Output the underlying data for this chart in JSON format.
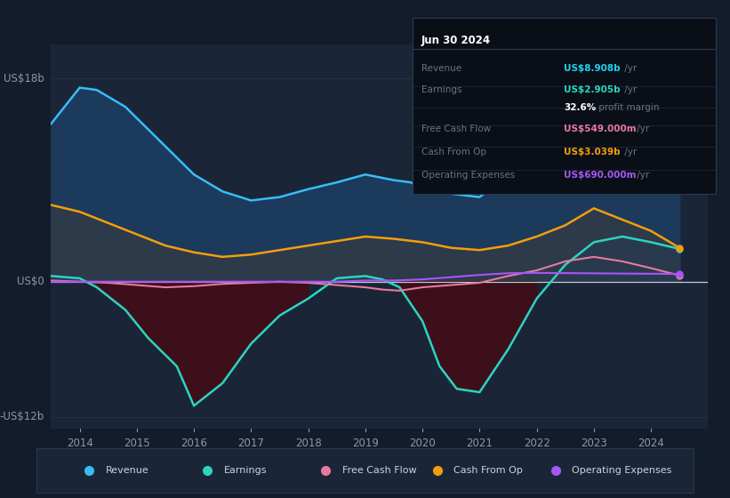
{
  "bg_color": "#131c2b",
  "plot_bg_color": "#1a2638",
  "grid_color": "#2a3a50",
  "colors": {
    "revenue_line": "#38bdf8",
    "revenue_fill": "#1b3a5c",
    "earnings_line": "#2dd4bf",
    "earnings_fill_neg": "#3d0f1a",
    "earnings_fill_pos": "#2a3a50",
    "cashfromop_line": "#f59e0b",
    "cashfromop_fill": "#2d3a4a",
    "freecashflow_line": "#e879a0",
    "opex_line": "#a855f7"
  },
  "ylim": [
    -13,
    21
  ],
  "xlim": [
    2013.5,
    2025.0
  ],
  "xticks": [
    2014,
    2015,
    2016,
    2017,
    2018,
    2019,
    2020,
    2021,
    2022,
    2023,
    2024
  ],
  "legend": [
    {
      "label": "Revenue",
      "color": "#38bdf8"
    },
    {
      "label": "Earnings",
      "color": "#2dd4bf"
    },
    {
      "label": "Free Cash Flow",
      "color": "#e879a0"
    },
    {
      "label": "Cash From Op",
      "color": "#f59e0b"
    },
    {
      "label": "Operating Expenses",
      "color": "#a855f7"
    }
  ],
  "revenue": {
    "x": [
      2013.5,
      2014.0,
      2014.3,
      2014.8,
      2015.2,
      2015.7,
      2016.0,
      2016.5,
      2017.0,
      2017.5,
      2018.0,
      2018.5,
      2019.0,
      2019.5,
      2019.8,
      2020.0,
      2020.5,
      2021.0,
      2021.5,
      2022.0,
      2022.5,
      2023.0,
      2023.3,
      2023.6,
      2024.0,
      2024.5
    ],
    "y": [
      14.0,
      17.2,
      17.0,
      15.5,
      13.5,
      11.0,
      9.5,
      8.0,
      7.2,
      7.5,
      8.2,
      8.8,
      9.5,
      9.0,
      8.8,
      8.2,
      7.8,
      7.5,
      9.5,
      11.5,
      14.0,
      16.5,
      15.0,
      14.0,
      12.5,
      8.9
    ]
  },
  "earnings": {
    "x": [
      2013.5,
      2014.0,
      2014.3,
      2014.8,
      2015.2,
      2015.7,
      2016.0,
      2016.5,
      2017.0,
      2017.5,
      2018.0,
      2018.5,
      2019.0,
      2019.3,
      2019.6,
      2020.0,
      2020.3,
      2020.6,
      2021.0,
      2021.5,
      2022.0,
      2022.5,
      2023.0,
      2023.5,
      2024.0,
      2024.5
    ],
    "y": [
      0.5,
      0.3,
      -0.5,
      -2.5,
      -5.0,
      -7.5,
      -11.0,
      -9.0,
      -5.5,
      -3.0,
      -1.5,
      0.3,
      0.5,
      0.2,
      -0.5,
      -3.5,
      -7.5,
      -9.5,
      -9.8,
      -6.0,
      -1.5,
      1.5,
      3.5,
      4.0,
      3.5,
      2.9
    ]
  },
  "cashfromop": {
    "x": [
      2013.5,
      2014.0,
      2014.5,
      2015.0,
      2015.5,
      2016.0,
      2016.5,
      2017.0,
      2017.5,
      2018.0,
      2018.5,
      2019.0,
      2019.5,
      2020.0,
      2020.5,
      2021.0,
      2021.5,
      2022.0,
      2022.5,
      2023.0,
      2023.5,
      2024.0,
      2024.5
    ],
    "y": [
      6.8,
      6.2,
      5.2,
      4.2,
      3.2,
      2.6,
      2.2,
      2.4,
      2.8,
      3.2,
      3.6,
      4.0,
      3.8,
      3.5,
      3.0,
      2.8,
      3.2,
      4.0,
      5.0,
      6.5,
      5.5,
      4.5,
      3.0
    ]
  },
  "freecashflow": {
    "x": [
      2013.5,
      2014.0,
      2014.5,
      2015.0,
      2015.5,
      2016.0,
      2016.5,
      2017.0,
      2017.5,
      2018.0,
      2018.5,
      2019.0,
      2019.3,
      2019.6,
      2020.0,
      2020.5,
      2021.0,
      2021.5,
      2022.0,
      2022.5,
      2023.0,
      2023.5,
      2024.0,
      2024.5
    ],
    "y": [
      0.1,
      0.0,
      -0.1,
      -0.3,
      -0.5,
      -0.4,
      -0.2,
      -0.1,
      0.0,
      -0.1,
      -0.3,
      -0.5,
      -0.7,
      -0.8,
      -0.5,
      -0.3,
      -0.1,
      0.5,
      1.0,
      1.8,
      2.2,
      1.8,
      1.2,
      0.55
    ]
  },
  "opex": {
    "x": [
      2013.5,
      2014.0,
      2015.0,
      2016.0,
      2017.0,
      2018.0,
      2018.5,
      2019.0,
      2019.5,
      2020.0,
      2020.5,
      2021.0,
      2021.5,
      2022.0,
      2022.5,
      2023.0,
      2023.5,
      2024.0,
      2024.5
    ],
    "y": [
      0.0,
      0.0,
      0.0,
      0.0,
      0.0,
      0.0,
      0.0,
      0.1,
      0.1,
      0.2,
      0.4,
      0.6,
      0.75,
      0.78,
      0.76,
      0.74,
      0.72,
      0.7,
      0.69
    ]
  },
  "info_box": {
    "date": "Jun 30 2024",
    "rows": [
      {
        "label": "Revenue",
        "value": "US$8.908b",
        "suffix": " /yr",
        "label_color": "#6b7280",
        "value_color": "#22d3ee"
      },
      {
        "label": "Earnings",
        "value": "US$2.905b",
        "suffix": " /yr",
        "label_color": "#6b7280",
        "value_color": "#2dd4bf"
      },
      {
        "label": "",
        "value": "32.6%",
        "suffix": " profit margin",
        "label_color": "#6b7280",
        "value_color": "#ffffff"
      },
      {
        "label": "Free Cash Flow",
        "value": "US$549.000m",
        "suffix": " /yr",
        "label_color": "#6b7280",
        "value_color": "#e879a0"
      },
      {
        "label": "Cash From Op",
        "value": "US$3.039b",
        "suffix": " /yr",
        "label_color": "#6b7280",
        "value_color": "#f59e0b"
      },
      {
        "label": "Operating Expenses",
        "value": "US$690.000m",
        "suffix": " /yr",
        "label_color": "#6b7280",
        "value_color": "#a855f7"
      }
    ]
  }
}
